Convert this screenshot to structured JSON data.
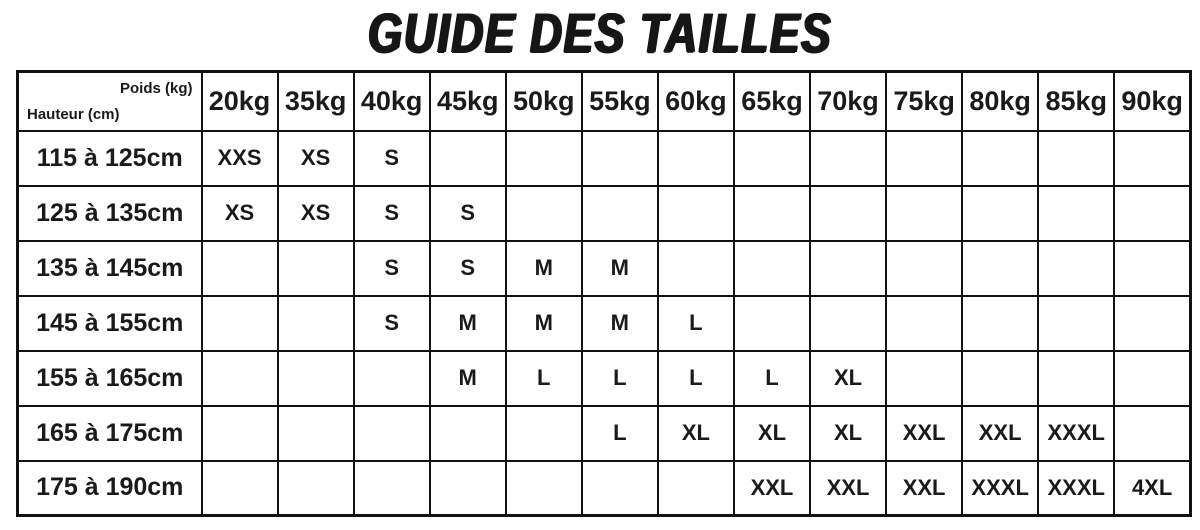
{
  "title": "GUIDE DES TAILLES",
  "table": {
    "corner": {
      "top_label": "Poids (kg)",
      "bottom_label": "Hauteur (cm)"
    },
    "weight_headers": [
      "20kg",
      "35kg",
      "40kg",
      "45kg",
      "50kg",
      "55kg",
      "60kg",
      "65kg",
      "70kg",
      "75kg",
      "80kg",
      "85kg",
      "90kg"
    ],
    "rows": [
      {
        "height": "115 à 125cm",
        "sizes": [
          "XXS",
          "XS",
          "S",
          "",
          "",
          "",
          "",
          "",
          "",
          "",
          "",
          "",
          ""
        ]
      },
      {
        "height": "125 à 135cm",
        "sizes": [
          "XS",
          "XS",
          "S",
          "S",
          "",
          "",
          "",
          "",
          "",
          "",
          "",
          "",
          ""
        ]
      },
      {
        "height": "135 à 145cm",
        "sizes": [
          "",
          "",
          "S",
          "S",
          "M",
          "M",
          "",
          "",
          "",
          "",
          "",
          "",
          ""
        ]
      },
      {
        "height": "145 à 155cm",
        "sizes": [
          "",
          "",
          "S",
          "M",
          "M",
          "M",
          "L",
          "",
          "",
          "",
          "",
          "",
          ""
        ]
      },
      {
        "height": "155 à 165cm",
        "sizes": [
          "",
          "",
          "",
          "M",
          "L",
          "L",
          "L",
          "L",
          "XL",
          "",
          "",
          "",
          ""
        ]
      },
      {
        "height": "165 à 175cm",
        "sizes": [
          "",
          "",
          "",
          "",
          "",
          "L",
          "XL",
          "XL",
          "XL",
          "XXL",
          "XXL",
          "XXXL",
          ""
        ]
      },
      {
        "height": "175 à 190cm",
        "sizes": [
          "",
          "",
          "",
          "",
          "",
          "",
          "",
          "XXL",
          "XXL",
          "XXL",
          "XXXL",
          "XXXL",
          "4XL"
        ]
      }
    ]
  },
  "colors": {
    "background": "#ffffff",
    "border": "#111111",
    "text": "#1a1a1a"
  }
}
